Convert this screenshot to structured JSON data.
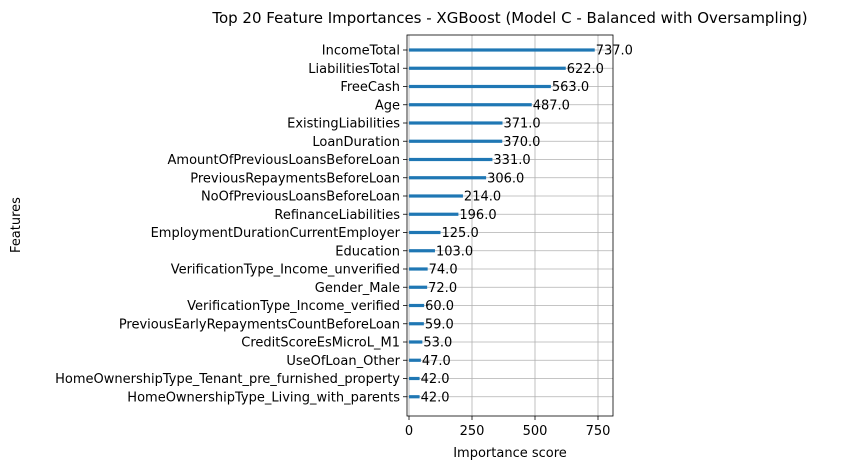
{
  "chart_data": {
    "type": "bar",
    "orientation": "horizontal",
    "title": "Top 20 Feature Importances - XGBoost (Model C - Balanced with Oversampling)",
    "xlabel": "Importance score",
    "ylabel": "Features",
    "xlim": [
      0,
      800
    ],
    "xticks": [
      0,
      250,
      500,
      750
    ],
    "xtick_labels": [
      "0",
      "250",
      "500",
      "750"
    ],
    "grid": true,
    "bar_color": "#1f77b4",
    "categories": [
      "IncomeTotal",
      "LiabilitiesTotal",
      "FreeCash",
      "Age",
      "ExistingLiabilities",
      "LoanDuration",
      "AmountOfPreviousLoansBeforeLoan",
      "PreviousRepaymentsBeforeLoan",
      "NoOfPreviousLoansBeforeLoan",
      "RefinanceLiabilities",
      "EmploymentDurationCurrentEmployer",
      "Education",
      "VerificationType_Income_unverified",
      "Gender_Male",
      "VerificationType_Income_verified",
      "PreviousEarlyRepaymentsCountBeforeLoan",
      "CreditScoreEsMicroL_M1",
      "UseOfLoan_Other",
      "HomeOwnershipType_Tenant_pre_furnished_property",
      "HomeOwnershipType_Living_with_parents"
    ],
    "values": [
      737.0,
      622.0,
      563.0,
      487.0,
      371.0,
      370.0,
      331.0,
      306.0,
      214.0,
      196.0,
      125.0,
      103.0,
      74.0,
      72.0,
      60.0,
      59.0,
      53.0,
      47.0,
      42.0,
      42.0
    ],
    "value_labels": [
      "737.0",
      "622.0",
      "563.0",
      "487.0",
      "371.0",
      "370.0",
      "331.0",
      "306.0",
      "214.0",
      "196.0",
      "125.0",
      "103.0",
      "74.0",
      "72.0",
      "60.0",
      "59.0",
      "53.0",
      "47.0",
      "42.0",
      "42.0"
    ]
  }
}
